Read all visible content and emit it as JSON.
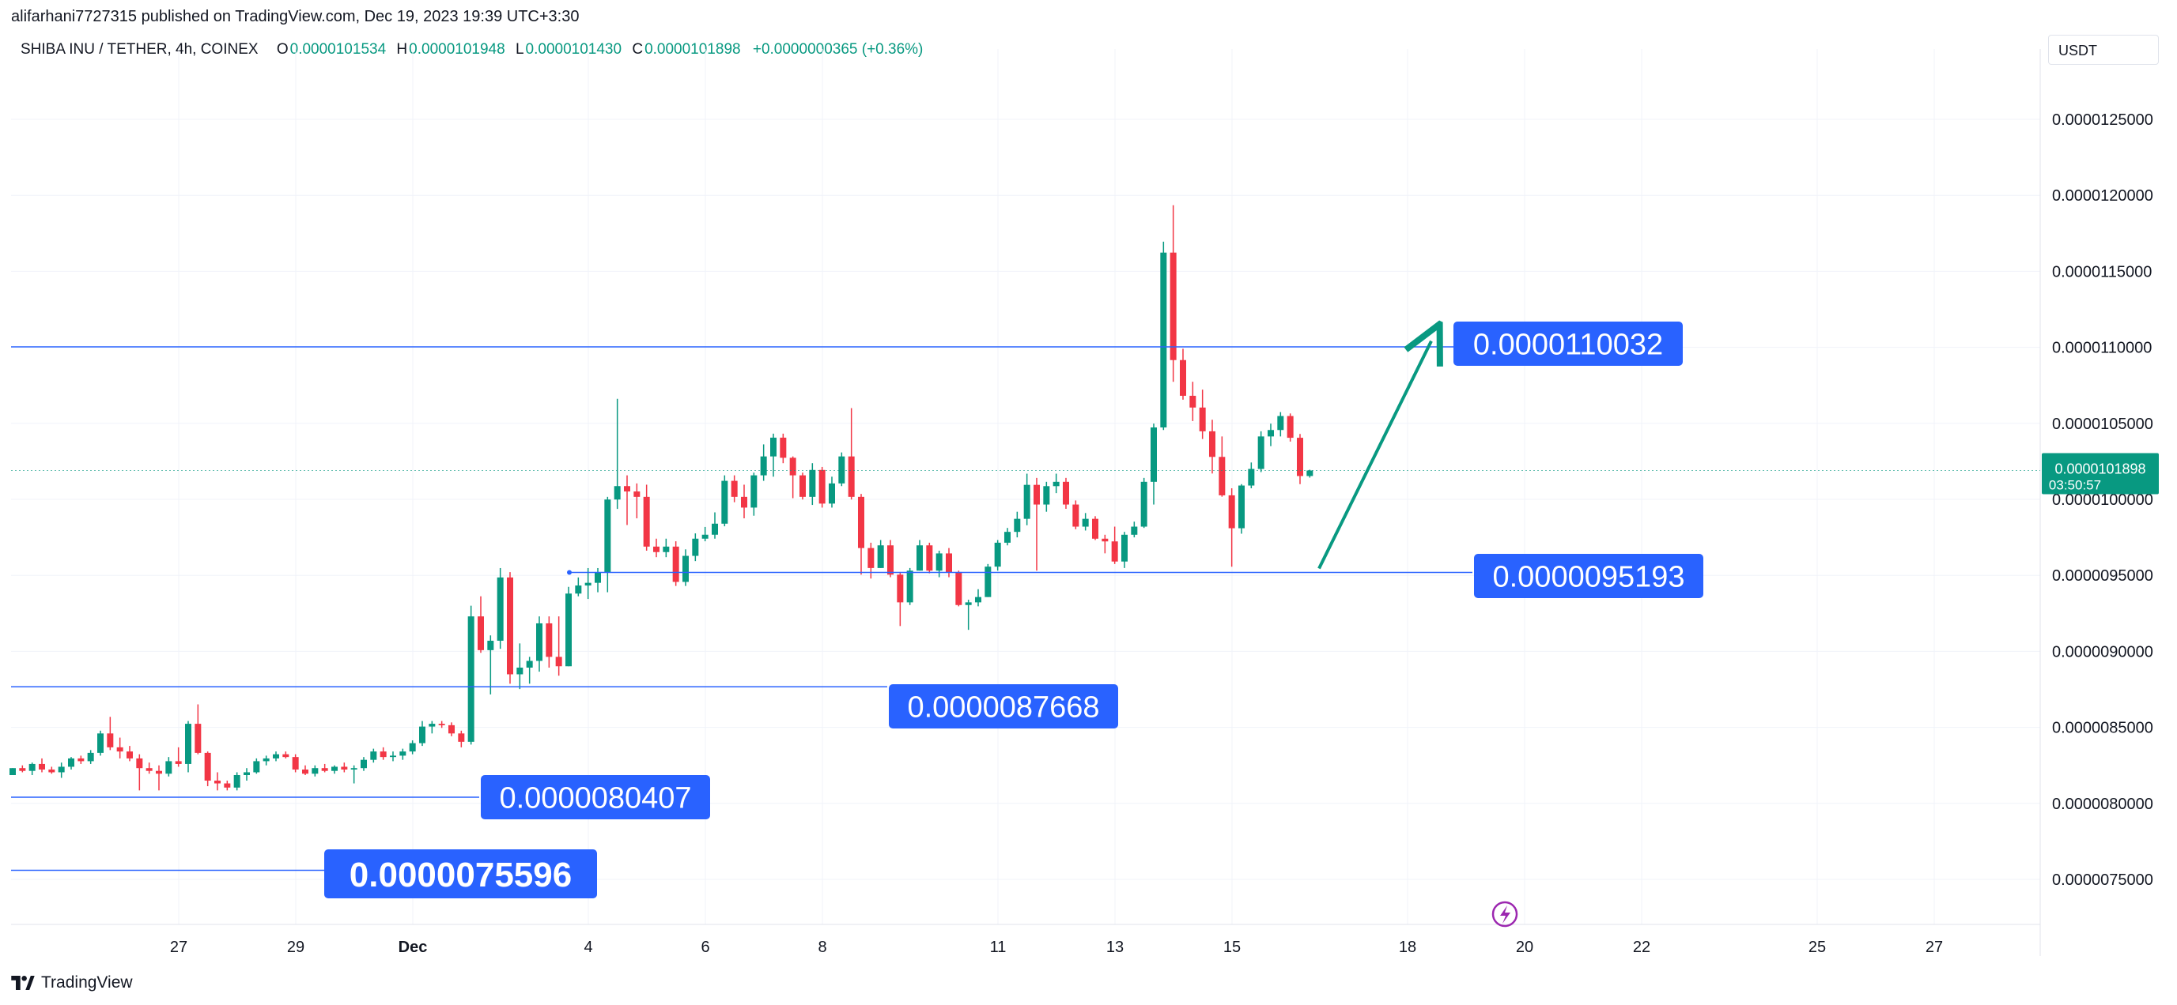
{
  "publish_line": "alifarhani7727315 published on TradingView.com, Dec 19, 2023 19:39 UTC+3:30",
  "legend": {
    "symbol": "SHIBA INU / TETHER, 4h, COINEX",
    "open_label": "O",
    "open": "0.0000101534",
    "high_label": "H",
    "high": "0.0000101948",
    "low_label": "L",
    "low": "0.0000101430",
    "close_label": "C",
    "close": "0.0000101898",
    "change": "+0.0000000365 (+0.36%)"
  },
  "currency": "USDT",
  "footer_brand": "TradingView",
  "icons": {
    "footer_logo": "tradingview-logo-icon",
    "lightning": "lightning-icon"
  },
  "colors": {
    "up": "#089981",
    "down": "#f23645",
    "line": "#2962ff",
    "label_bg": "#2962ff"
  },
  "chart_data": {
    "type": "candlestick",
    "ylim": [
      7.1e-06,
      1.31e-05
    ],
    "y_ticks": [
      "0.0000125000",
      "0.0000120000",
      "0.0000115000",
      "0.0000110000",
      "0.0000105000",
      "0.0000100000",
      "0.0000095000",
      "0.0000090000",
      "0.0000085000",
      "0.0000080000",
      "0.0000075000"
    ],
    "x_ticks": [
      "27",
      "29",
      "Dec",
      "4",
      "6",
      "8",
      "11",
      "13",
      "15",
      "18",
      "20",
      "22",
      "25",
      "27"
    ],
    "price_label": {
      "value": "0.0000101898",
      "countdown": "03:50:57",
      "price": 1.01898e-05
    },
    "horizontal_lines": [
      {
        "label": "0.0000110032",
        "y": 1.10032e-05
      },
      {
        "label": "0.0000095193",
        "y": 9.5193e-06
      },
      {
        "label": "0.0000087668",
        "y": 8.7668e-06
      },
      {
        "label": "0.0000080407",
        "y": 8.0407e-06
      },
      {
        "label": "0.0000075596",
        "y": 7.5596e-06
      }
    ],
    "arrow": {
      "from": 9.5452e-06,
      "to": 1.10411e-05
    },
    "candles_4h": [
      [
        8.1861e-06,
        8.2318e-06,
        8.1861e-06,
        8.2318e-06
      ],
      [
        8.2318e-06,
        8.25e-06,
        8.2044e-06,
        8.2136e-06
      ],
      [
        8.2136e-06,
        8.2683e-06,
        8.1861e-06,
        8.2592e-06
      ],
      [
        8.2592e-06,
        8.2957e-06,
        8.2044e-06,
        8.2226e-06
      ],
      [
        8.2226e-06,
        8.2409e-06,
        8.1952e-06,
        8.2044e-06
      ],
      [
        8.2044e-06,
        8.2683e-06,
        8.1678e-06,
        8.2409e-06
      ],
      [
        8.2409e-06,
        8.3048e-06,
        8.2226e-06,
        8.2957e-06
      ],
      [
        8.2957e-06,
        8.3139e-06,
        8.2592e-06,
        8.2774e-06
      ],
      [
        8.2774e-06,
        8.3504e-06,
        8.2592e-06,
        8.3322e-06
      ],
      [
        8.3322e-06,
        8.4782e-06,
        8.3139e-06,
        8.46e-06
      ],
      [
        8.46e-06,
        8.5691e-06,
        8.3504e-06,
        8.3687e-06
      ],
      [
        8.3687e-06,
        8.4326e-06,
        8.2957e-06,
        8.3413e-06
      ],
      [
        8.3413e-06,
        8.3778e-06,
        8.2774e-06,
        8.2957e-06
      ],
      [
        8.2957e-06,
        8.323e-06,
        8.0854e-06,
        8.2318e-06
      ],
      [
        8.2318e-06,
        8.2683e-06,
        8.1952e-06,
        8.2136e-06
      ],
      [
        8.2136e-06,
        8.25e-06,
        8.0854e-06,
        8.1952e-06
      ],
      [
        8.1952e-06,
        8.3048e-06,
        8.177e-06,
        8.2774e-06
      ],
      [
        8.2774e-06,
        8.3687e-06,
        8.2409e-06,
        8.2592e-06
      ],
      [
        8.2592e-06,
        8.5417e-06,
        8.2044e-06,
        8.5235e-06
      ],
      [
        8.5235e-06,
        8.6513e-06,
        8.323e-06,
        8.3322e-06
      ],
      [
        8.3322e-06,
        8.3413e-06,
        8.113e-06,
        8.1496e-06
      ],
      [
        8.1496e-06,
        8.2044e-06,
        8.0854e-06,
        8.1313e-06
      ],
      [
        8.1313e-06,
        8.1496e-06,
        8.0854e-06,
        8.1039e-06
      ],
      [
        8.1039e-06,
        8.2044e-06,
        8.0854e-06,
        8.1861e-06
      ],
      [
        8.1861e-06,
        8.2318e-06,
        8.1496e-06,
        8.2044e-06
      ],
      [
        8.2044e-06,
        8.2957e-06,
        8.1952e-06,
        8.2774e-06
      ],
      [
        8.2774e-06,
        8.3139e-06,
        8.25e-06,
        8.2957e-06
      ],
      [
        8.2957e-06,
        8.3413e-06,
        8.2774e-06,
        8.323e-06
      ],
      [
        8.323e-06,
        8.3413e-06,
        8.2957e-06,
        8.3048e-06
      ],
      [
        8.3048e-06,
        8.323e-06,
        8.2044e-06,
        8.2226e-06
      ],
      [
        8.2226e-06,
        8.25e-06,
        8.1861e-06,
        8.1952e-06
      ],
      [
        8.1952e-06,
        8.25e-06,
        8.177e-06,
        8.2318e-06
      ],
      [
        8.2318e-06,
        8.2592e-06,
        8.2044e-06,
        8.2136e-06
      ],
      [
        8.2136e-06,
        8.25e-06,
        8.1952e-06,
        8.2409e-06
      ],
      [
        8.2409e-06,
        8.2683e-06,
        8.2044e-06,
        8.2226e-06
      ],
      [
        8.2226e-06,
        8.25e-06,
        8.1313e-06,
        8.2318e-06
      ],
      [
        8.2318e-06,
        8.3048e-06,
        8.2136e-06,
        8.2865e-06
      ],
      [
        8.2865e-06,
        8.3596e-06,
        8.2683e-06,
        8.3413e-06
      ],
      [
        8.3413e-06,
        8.3687e-06,
        8.2865e-06,
        8.3048e-06
      ],
      [
        8.3048e-06,
        8.3413e-06,
        8.2774e-06,
        8.3139e-06
      ],
      [
        8.3139e-06,
        8.3596e-06,
        8.2865e-06,
        8.3413e-06
      ],
      [
        8.3413e-06,
        8.4144e-06,
        8.323e-06,
        8.3961e-06
      ],
      [
        8.3961e-06,
        8.5417e-06,
        8.3778e-06,
        8.5052e-06
      ],
      [
        8.5052e-06,
        8.5417e-06,
        8.46e-06,
        8.5235e-06
      ],
      [
        8.5235e-06,
        8.5417e-06,
        8.4965e-06,
        8.5143e-06
      ],
      [
        8.5143e-06,
        8.5326e-06,
        8.4417e-06,
        8.46e-06
      ],
      [
        8.46e-06,
        8.4782e-06,
        8.3687e-06,
        8.4052e-06
      ],
      [
        8.4052e-06,
        9.3004e-06,
        8.387e-06,
        9.23e-06
      ],
      [
        9.23e-06,
        9.3622e-06,
        8.9904e-06,
        9.008e-06
      ],
      [
        9.008e-06,
        9.105e-06,
        8.7168e-06,
        9.0699e-06
      ],
      [
        9.0699e-06,
        9.548e-06,
        9.0167e-06,
        9.4862e-06
      ],
      [
        9.4862e-06,
        9.5215e-06,
        8.7872e-06,
        8.849e-06
      ],
      [
        8.849e-06,
        9.0522e-06,
        8.7519e-06,
        8.893e-06
      ],
      [
        8.893e-06,
        8.9638e-06,
        8.7872e-06,
        8.9373e-06
      ],
      [
        8.9373e-06,
        9.23e-06,
        8.8664e-06,
        9.1842e-06
      ],
      [
        9.1842e-06,
        9.23e-06,
        8.893e-06,
        8.9638e-06
      ],
      [
        8.9638e-06,
        9.23e-06,
        8.84e-06,
        8.902e-06
      ],
      [
        8.902e-06,
        9.4244e-06,
        8.902e-06,
        9.3801e-06
      ],
      [
        9.3801e-06,
        9.4862e-06,
        9.3622e-06,
        9.4332e-06
      ],
      [
        9.4332e-06,
        9.548e-06,
        9.3447e-06,
        9.4509e-06
      ],
      [
        9.4509e-06,
        9.548e-06,
        9.3888e-06,
        9.5215e-06
      ],
      [
        9.5215e-06,
        1.00164e-05,
        9.3888e-06,
        9.9988e-06
      ],
      [
        9.9988e-06,
        1.06616e-05,
        9.937e-06,
        1.00871e-05
      ],
      [
        1.00871e-05,
        1.01579e-05,
        9.8311e-06,
        1.00518e-05
      ],
      [
        1.00518e-05,
        1.01047e-05,
        9.8751e-06,
        1.00164e-05
      ],
      [
        1.00164e-05,
        1.00964e-05,
        9.6623e-06,
        9.6891e-06
      ],
      [
        9.6891e-06,
        9.7413e-06,
        9.6196e-06,
        9.6531e-06
      ],
      [
        9.6531e-06,
        9.7413e-06,
        9.6196e-06,
        9.6891e-06
      ],
      [
        9.6891e-06,
        9.7241e-06,
        9.4303e-06,
        9.4569e-06
      ],
      [
        9.4569e-06,
        9.671e-06,
        9.4303e-06,
        9.6282e-06
      ],
      [
        9.6282e-06,
        9.776e-06,
        9.5938e-06,
        9.7413e-06
      ],
      [
        9.7413e-06,
        9.8185e-06,
        9.7241e-06,
        9.7674e-06
      ],
      [
        9.7674e-06,
        9.9144e-06,
        9.7413e-06,
        9.8399e-06
      ],
      [
        9.8399e-06,
        1.01579e-05,
        9.8227e-06,
        1.01218e-05
      ],
      [
        1.01218e-05,
        1.01579e-05,
        9.9811e-06,
        1.00164e-05
      ],
      [
        1.00164e-05,
        1.00964e-05,
        9.8751e-06,
        9.9458e-06
      ],
      [
        9.9458e-06,
        1.01757e-05,
        9.8923e-06,
        1.01579e-05
      ],
      [
        1.01579e-05,
        1.03616e-05,
        1.01218e-05,
        1.02823e-05
      ],
      [
        1.02823e-05,
        1.04322e-05,
        1.0149e-05,
        1.04058e-05
      ],
      [
        1.04058e-05,
        1.04322e-05,
        1.0238e-05,
        1.02734e-05
      ],
      [
        1.02734e-05,
        1.02823e-05,
        1.00076e-05,
        1.01579e-05
      ],
      [
        1.01579e-05,
        1.01757e-05,
        9.9988e-06,
        1.00164e-05
      ],
      [
        1.00164e-05,
        1.0238e-05,
        9.9632e-06,
        1.01934e-05
      ],
      [
        1.01934e-05,
        1.02134e-05,
        9.9458e-06,
        9.9721e-06
      ],
      [
        9.9721e-06,
        1.0149e-05,
        9.9458e-06,
        1.01047e-05
      ],
      [
        1.01047e-05,
        1.03086e-05,
        1.00871e-05,
        1.02823e-05
      ],
      [
        1.02823e-05,
        1.06001e-05,
        9.9988e-06,
        1.00164e-05
      ],
      [
        1.00164e-05,
        1.00356e-05,
        9.5047e-06,
        9.6796e-06
      ],
      [
        9.6796e-06,
        9.7147e-06,
        9.4789e-06,
        9.5484e-06
      ],
      [
        9.5484e-06,
        9.7323e-06,
        9.5484e-06,
        9.6973e-06
      ],
      [
        9.6973e-06,
        9.7323e-06,
        9.4877e-06,
        9.5047e-06
      ],
      [
        9.5047e-06,
        9.522e-06,
        9.1666e-06,
        9.3224e-06
      ],
      [
        9.3224e-06,
        9.5484e-06,
        9.3048e-06,
        9.5309e-06
      ],
      [
        9.5309e-06,
        9.7323e-06,
        9.5309e-06,
        9.6973e-06
      ],
      [
        9.6973e-06,
        9.7147e-06,
        9.5133e-06,
        9.5309e-06
      ],
      [
        9.5309e-06,
        9.6621e-06,
        9.4877e-06,
        9.6443e-06
      ],
      [
        9.6443e-06,
        9.6796e-06,
        9.4877e-06,
        9.522e-06
      ],
      [
        9.522e-06,
        9.5309e-06,
        9.2963e-06,
        9.3048e-06
      ],
      [
        9.3048e-06,
        9.3398e-06,
        9.1415e-06,
        9.3224e-06
      ],
      [
        9.3224e-06,
        9.4088e-06,
        9.2963e-06,
        9.3573e-06
      ],
      [
        9.3573e-06,
        9.5747e-06,
        9.3573e-06,
        9.5573e-06
      ],
      [
        9.5573e-06,
        9.7323e-06,
        9.5309e-06,
        9.7147e-06
      ],
      [
        9.7147e-06,
        9.8119e-06,
        9.6973e-06,
        9.786e-06
      ],
      [
        9.786e-06,
        9.9185e-06,
        9.7498e-06,
        9.8719e-06
      ],
      [
        9.8719e-06,
        1.01688e-05,
        9.8296e-06,
        1.00953e-05
      ],
      [
        1.00953e-05,
        1.01411e-05,
        9.5309e-06,
        9.9659e-06
      ],
      [
        9.9659e-06,
        1.01153e-05,
        9.9185e-06,
        1.00868e-05
      ],
      [
        1.00868e-05,
        1.01688e-05,
        1.00409e-05,
        1.01153e-05
      ],
      [
        1.01153e-05,
        1.01411e-05,
        9.9377e-06,
        9.9659e-06
      ],
      [
        9.9659e-06,
        9.9927e-06,
        9.8033e-06,
        9.8205e-06
      ],
      [
        9.8205e-06,
        9.9099e-06,
        9.7949e-06,
        9.8719e-06
      ],
      [
        9.8719e-06,
        9.8891e-06,
        9.7323e-06,
        9.7412e-06
      ],
      [
        9.7412e-06,
        9.7672e-06,
        9.6448e-06,
        9.7233e-06
      ],
      [
        9.7233e-06,
        9.8205e-06,
        9.5747e-06,
        9.5909e-06
      ],
      [
        9.5909e-06,
        9.786e-06,
        9.5484e-06,
        9.7672e-06
      ],
      [
        9.7672e-06,
        9.8531e-06,
        9.7498e-06,
        9.8205e-06
      ],
      [
        9.8205e-06,
        1.01411e-05,
        9.8119e-06,
        1.01153e-05
      ],
      [
        1.01153e-05,
        1.04983e-05,
        9.9659e-06,
        1.0473e-05
      ],
      [
        1.0473e-05,
        1.16951e-05,
        1.04562e-05,
        1.16232e-05
      ],
      [
        1.16232e-05,
        1.1935e-05,
        1.07734e-05,
        1.09162e-05
      ],
      [
        1.09162e-05,
        1.09908e-05,
        1.06556e-05,
        1.06812e-05
      ],
      [
        1.06812e-05,
        1.07734e-05,
        1.0515e-05,
        1.06039e-05
      ],
      [
        1.06039e-05,
        1.07217e-05,
        1.0397e-05,
        1.04476e-05
      ],
      [
        1.04476e-05,
        1.05236e-05,
        1.017e-05,
        1.02792e-05
      ],
      [
        1.02792e-05,
        1.04138e-05,
        1.00173e-05,
        1.00264e-05
      ],
      [
        1.00264e-05,
        1.00728e-05,
        9.5567e-06,
        9.8099e-06
      ],
      [
        9.8099e-06,
        1.01e-05,
        9.774e-06,
        1.00908e-05
      ],
      [
        1.00908e-05,
        1.02425e-05,
        1.00728e-05,
        1.02e-05
      ],
      [
        1.02e-05,
        1.04476e-05,
        1.01791e-05,
        1.04138e-05
      ],
      [
        1.04138e-05,
        1.0498e-05,
        1.035e-05,
        1.0456e-05
      ],
      [
        1.0456e-05,
        1.05739e-05,
        1.04138e-05,
        1.0548e-05
      ],
      [
        1.0548e-05,
        1.0565e-05,
        1.038e-05,
        1.0405e-05
      ],
      [
        1.0405e-05,
        1.043e-05,
        1.01e-05,
        1.01534e-05
      ],
      [
        1.01534e-05,
        1.01948e-05,
        1.0143e-05,
        1.01898e-05
      ]
    ]
  }
}
